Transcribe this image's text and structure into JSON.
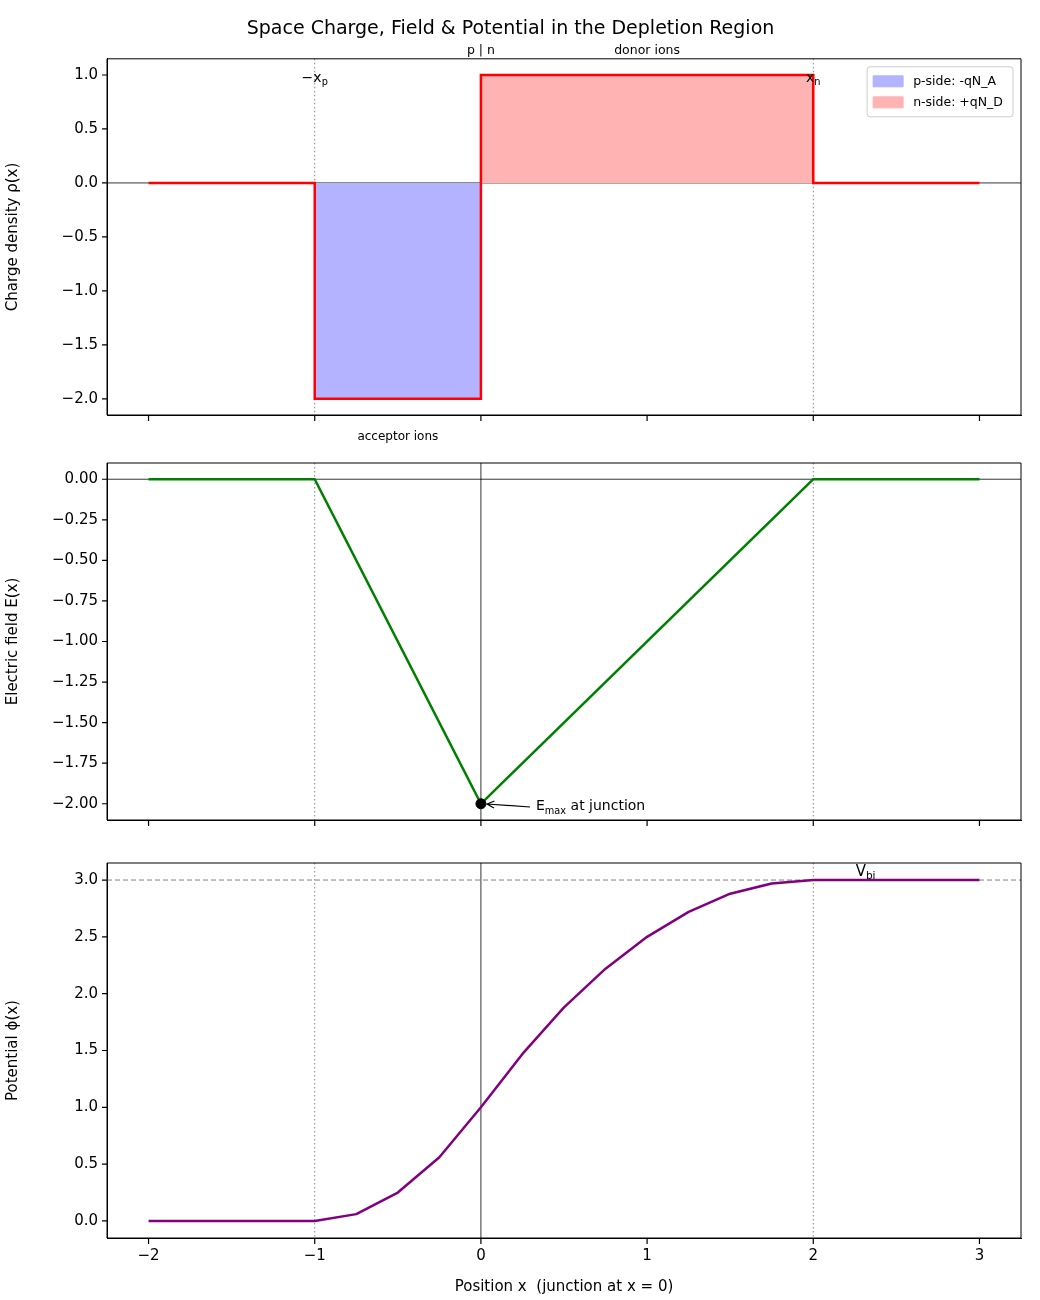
{
  "chart_data": [
    {
      "type": "step",
      "title": "Space Charge, Field & Potential in the Depletion Region",
      "ylabel": "Charge density ρ(x)",
      "xlim": [
        -2.25,
        3.25
      ],
      "xticks": [
        -2,
        -1,
        0,
        1,
        2,
        3
      ],
      "ylim": [
        -2.15,
        1.15
      ],
      "yticks": [
        {
          "value": -2,
          "label": "−2.0"
        },
        {
          "value": -1.5,
          "label": "−1.5"
        },
        {
          "value": -1,
          "label": "−1.0"
        },
        {
          "value": -0.5,
          "label": "−0.5"
        },
        {
          "value": 0,
          "label": "0.0"
        },
        {
          "value": 0.5,
          "label": "0.5"
        },
        {
          "value": 1,
          "label": "1.0"
        }
      ],
      "tick_labels": "y",
      "legend": "top right",
      "series": [
        {
          "type": "area",
          "name": "p-side: -qN_A",
          "color": "#b3b3ff",
          "x": [
            -1,
            0
          ],
          "values": [
            -2,
            -2
          ]
        },
        {
          "type": "area",
          "name": "n-side: +qN_D",
          "color": "#ffb3b3",
          "x": [
            0,
            2
          ],
          "values": [
            1,
            1
          ]
        },
        {
          "color": "#ff0000",
          "x": [
            -2,
            -1,
            0,
            2,
            3
          ],
          "values": [
            0,
            -2,
            1,
            0,
            0
          ]
        }
      ],
      "ref_lines": [
        {
          "axis": "y",
          "value": 0,
          "color": "#000000",
          "line_style": "solid"
        },
        {
          "axis": "x",
          "value": -1,
          "color": "#808080",
          "line_style": "dotted"
        },
        {
          "axis": "x",
          "value": 2,
          "color": "#808080",
          "line_style": "dotted"
        }
      ],
      "annotations": [
        {
          "text": "−x$_{p}$",
          "x": -1,
          "y": 0.97
        },
        {
          "text": "x$_{n}$",
          "x": 2,
          "y": 0.97
        },
        {
          "text": "p | n",
          "x": 0,
          "y": 1
        },
        {
          "text": "donor ions",
          "x": 1,
          "y": 1
        },
        {
          "text": "acceptor ions",
          "x": -0.5,
          "y": -2
        }
      ]
    },
    {
      "type": "line",
      "ylabel": "Electric field E(x)",
      "xlim": [
        -2.25,
        3.25
      ],
      "xticks": [
        -2,
        -1,
        0,
        1,
        2,
        3
      ],
      "ylim": [
        -2.1,
        0.1
      ],
      "yticks": [
        {
          "value": -2,
          "label": "−2.00"
        },
        {
          "value": -1.75,
          "label": "−1.75"
        },
        {
          "value": -1.5,
          "label": "−1.50"
        },
        {
          "value": -1.25,
          "label": "−1.25"
        },
        {
          "value": -1,
          "label": "−1.00"
        },
        {
          "value": -0.75,
          "label": "−0.75"
        },
        {
          "value": -0.5,
          "label": "−0.50"
        },
        {
          "value": -0.25,
          "label": "−0.25"
        },
        {
          "value": 0,
          "label": "0.00"
        }
      ],
      "tick_labels": "y",
      "series": [
        {
          "color": "#008000",
          "x": [
            -2,
            -1,
            0,
            2,
            3
          ],
          "values": [
            0,
            0,
            -2,
            0,
            0
          ]
        },
        {
          "type": "scatter",
          "color": "#000000",
          "marker": "circle",
          "x": [
            0
          ],
          "values": [
            -2
          ]
        }
      ],
      "ref_lines": [
        {
          "axis": "y",
          "value": 0,
          "color": "#000000",
          "line_style": "solid"
        },
        {
          "axis": "x",
          "value": 0,
          "color": "#000000",
          "line_style": "solid"
        },
        {
          "axis": "x",
          "value": -1,
          "color": "#808080",
          "line_style": "dotted"
        },
        {
          "axis": "x",
          "value": 2,
          "color": "#808080",
          "line_style": "dotted"
        }
      ],
      "annotations": [
        "E$_{max}$ at junction"
      ]
    },
    {
      "type": "line",
      "ylabel": "Potential ϕ(x)",
      "xlabel": "Position x  (junction at x = 0)",
      "xlim": [
        -2.25,
        3.25
      ],
      "xticks": [
        {
          "value": -2,
          "label": "−2"
        },
        {
          "value": -1,
          "label": "−1"
        },
        0,
        1,
        2,
        3
      ],
      "ylim": [
        -0.15,
        3.15
      ],
      "yticks": [
        {
          "value": 0,
          "label": "0.0"
        },
        {
          "value": 0.5,
          "label": "0.5"
        },
        {
          "value": 1,
          "label": "1.0"
        },
        {
          "value": 1.5,
          "label": "1.5"
        },
        {
          "value": 2,
          "label": "2.0"
        },
        {
          "value": 2.5,
          "label": "2.5"
        },
        {
          "value": 3,
          "label": "3.0"
        }
      ],
      "series": [
        {
          "color": "#800080",
          "x": [
            -2,
            -1.5,
            -1,
            -0.75,
            -0.5,
            -0.25,
            0,
            0.25,
            0.5,
            0.75,
            1,
            1.25,
            1.5,
            1.75,
            2,
            2.5,
            3
          ],
          "values": [
            0,
            0,
            0,
            0.06,
            0.25,
            0.56,
            1,
            1.47,
            1.88,
            2.22,
            2.5,
            2.72,
            2.88,
            2.97,
            3,
            3,
            3
          ]
        }
      ],
      "ref_lines": [
        {
          "axis": "x",
          "value": 0,
          "color": "#000000",
          "line_style": "solid"
        },
        {
          "axis": "x",
          "value": -1,
          "color": "#808080",
          "line_style": "dotted"
        },
        {
          "axis": "x",
          "value": 2,
          "color": "#808080",
          "line_style": "dotted"
        },
        {
          "axis": "y",
          "value": 3,
          "color": "#808080",
          "line_style": "dashed",
          "label": "V$_{bi}$"
        }
      ]
    }
  ]
}
